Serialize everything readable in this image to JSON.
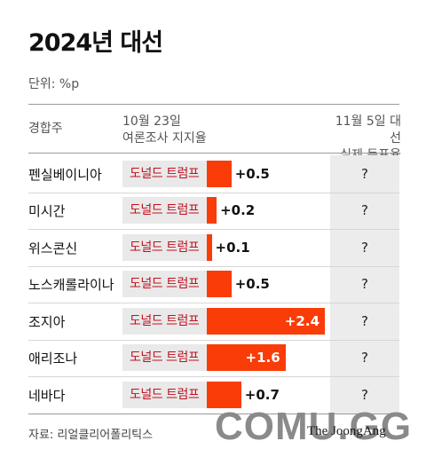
{
  "title": "2024년 대선",
  "unit": "단위: %p",
  "columns": {
    "state": "경합주",
    "poll_line1": "10월 23일",
    "poll_line2": "여론조사 지지율",
    "actual_line1": "11월 5일 대선",
    "actual_line2": "실제 득표율"
  },
  "source": "자료: 리얼클리어폴리틱스",
  "watermark": {
    "site": "COMU.GG",
    "publisher": "The JoongAng"
  },
  "colors": {
    "bar": "#fa3c09",
    "candidate_text": "#c0111f",
    "result_bg": "#ececec"
  },
  "chart_data": {
    "type": "bar",
    "orientation": "horizontal",
    "categories": [
      "펜실베이니아",
      "미시간",
      "위스콘신",
      "노스캐롤라이나",
      "조지아",
      "애리조나",
      "네바다"
    ],
    "leader": [
      "도널드 트럼프",
      "도널드 트럼프",
      "도널드 트럼프",
      "도널드 트럼프",
      "도널드 트럼프",
      "도널드 트럼프",
      "도널드 트럼프"
    ],
    "values": [
      0.5,
      0.2,
      0.1,
      0.5,
      2.4,
      1.6,
      0.7
    ],
    "labels": [
      "+0.5",
      "+0.2",
      "+0.1",
      "+0.5",
      "+2.4",
      "+1.6",
      "+0.7"
    ],
    "actual": [
      "?",
      "?",
      "?",
      "?",
      "?",
      "?",
      "?"
    ],
    "xlim": [
      0,
      2.5
    ]
  }
}
